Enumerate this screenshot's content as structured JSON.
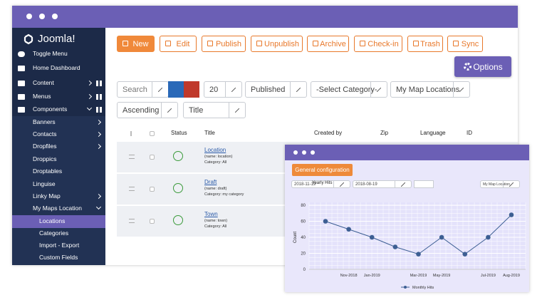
{
  "window": {
    "logo": "Joomla!"
  },
  "sidebar": {
    "items": [
      "Toggle Menu",
      "Home Dashboard",
      "Content",
      "Menus",
      "Components",
      "Banners",
      "Contacts",
      "Dropfiles",
      "Droppics",
      "Droptables",
      "Linguise",
      "Linky Map",
      "My Maps Location",
      "Locations",
      "Categories",
      "Import - Export",
      "Custom Fields"
    ]
  },
  "toolbar": {
    "buttons": [
      "New",
      "Edit",
      "Publish",
      "Unpublish",
      "Archive",
      "Check-in",
      "Trash",
      "Sync"
    ],
    "options": "Options"
  },
  "filters": {
    "search": "Search",
    "limit": "20",
    "status": "Published",
    "category": "-Select Category-",
    "list": "My Map Locations",
    "order": "Ascending",
    "sort": "Title"
  },
  "table": {
    "headers": [
      "Status",
      "Title",
      "Created by",
      "Zip",
      "Language",
      "ID"
    ],
    "rows": [
      {
        "title": "Location",
        "name": "(name: location)",
        "category": "Category: All"
      },
      {
        "title": "Draft",
        "name": "(name: draft)",
        "category": "Category: my category"
      },
      {
        "title": "Town",
        "name": "(name: town)",
        "category": "Category: All"
      }
    ]
  },
  "popup": {
    "button": "General configuration",
    "date_from": "2018-11-19",
    "date_to": "2018-08-19",
    "select": "My Map Location"
  },
  "chart_data": {
    "type": "line",
    "title": "Yearly Hits",
    "y_label": "Count",
    "categories": [
      null,
      "Nov-2018",
      "Jan-2019",
      null,
      "Mar-2019",
      "May-2019",
      null,
      "Jul-2019",
      "Aug-2019"
    ],
    "series": [
      {
        "name": "Monthly Hits",
        "color": "#3d5f93",
        "values": [
          60,
          50,
          40,
          28,
          19,
          40,
          19,
          40,
          68
        ]
      }
    ],
    "ylim": [
      0,
      80
    ],
    "yticks": [
      0,
      20,
      40,
      60,
      80
    ],
    "grid": true
  }
}
